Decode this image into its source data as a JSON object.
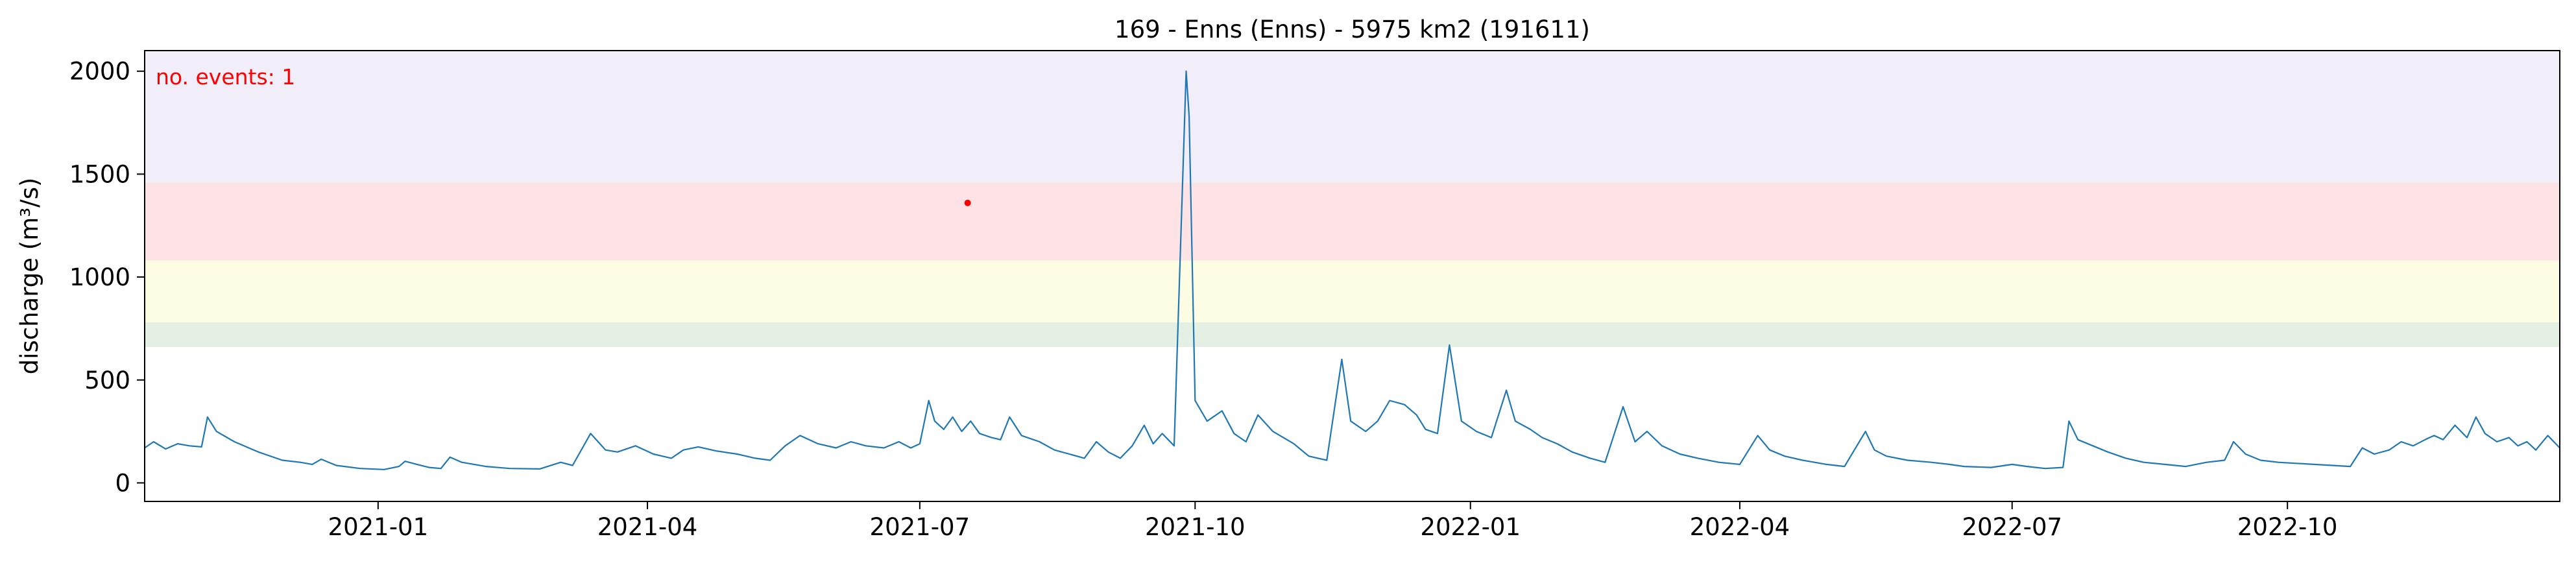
{
  "chart_data": {
    "type": "line",
    "title": "169 - Enns (Enns) - 5975 km2 (191611)",
    "xlabel": "",
    "ylabel": "discharge (m³/s)",
    "xlim": [
      "2020-10-15",
      "2022-12-31"
    ],
    "ylim": [
      -90,
      2100
    ],
    "grid": false,
    "yticks": [
      0,
      500,
      1000,
      1500,
      2000
    ],
    "xticks": [
      {
        "date": "2021-01-01",
        "label": "2021-01"
      },
      {
        "date": "2021-04-01",
        "label": "2021-04"
      },
      {
        "date": "2021-07-01",
        "label": "2021-07"
      },
      {
        "date": "2021-10-01",
        "label": "2021-10"
      },
      {
        "date": "2022-01-01",
        "label": "2022-01"
      },
      {
        "date": "2022-04-01",
        "label": "2022-04"
      },
      {
        "date": "2022-07-01",
        "label": "2022-07"
      },
      {
        "date": "2022-10-01",
        "label": "2022-10"
      }
    ],
    "threshold_bands": [
      {
        "from": 660,
        "to": 780,
        "color": "#e3f0e3"
      },
      {
        "from": 780,
        "to": 1080,
        "color": "#fdfde3"
      },
      {
        "from": 1080,
        "to": 1460,
        "color": "#fde3e6"
      },
      {
        "from": 1460,
        "to": 2100,
        "color": "#f1eef9"
      }
    ],
    "series": [
      {
        "color": "#1f77b4",
        "points": [
          [
            "2020-10-15",
            170
          ],
          [
            "2020-10-18",
            200
          ],
          [
            "2020-10-22",
            165
          ],
          [
            "2020-10-26",
            190
          ],
          [
            "2020-10-30",
            180
          ],
          [
            "2020-11-03",
            175
          ],
          [
            "2020-11-05",
            320
          ],
          [
            "2020-11-08",
            250
          ],
          [
            "2020-11-14",
            200
          ],
          [
            "2020-11-22",
            150
          ],
          [
            "2020-11-30",
            110
          ],
          [
            "2020-12-06",
            100
          ],
          [
            "2020-12-10",
            90
          ],
          [
            "2020-12-13",
            115
          ],
          [
            "2020-12-18",
            85
          ],
          [
            "2020-12-26",
            70
          ],
          [
            "2021-01-03",
            65
          ],
          [
            "2021-01-08",
            80
          ],
          [
            "2021-01-10",
            105
          ],
          [
            "2021-01-14",
            90
          ],
          [
            "2021-01-18",
            75
          ],
          [
            "2021-01-22",
            70
          ],
          [
            "2021-01-25",
            125
          ],
          [
            "2021-01-29",
            100
          ],
          [
            "2021-02-06",
            80
          ],
          [
            "2021-02-14",
            70
          ],
          [
            "2021-02-24",
            68
          ],
          [
            "2021-03-03",
            100
          ],
          [
            "2021-03-07",
            85
          ],
          [
            "2021-03-13",
            240
          ],
          [
            "2021-03-18",
            160
          ],
          [
            "2021-03-22",
            150
          ],
          [
            "2021-03-28",
            180
          ],
          [
            "2021-04-03",
            140
          ],
          [
            "2021-04-09",
            120
          ],
          [
            "2021-04-13",
            160
          ],
          [
            "2021-04-18",
            175
          ],
          [
            "2021-04-24",
            155
          ],
          [
            "2021-05-01",
            140
          ],
          [
            "2021-05-07",
            120
          ],
          [
            "2021-05-12",
            110
          ],
          [
            "2021-05-17",
            180
          ],
          [
            "2021-05-22",
            230
          ],
          [
            "2021-05-28",
            190
          ],
          [
            "2021-06-03",
            170
          ],
          [
            "2021-06-08",
            200
          ],
          [
            "2021-06-13",
            180
          ],
          [
            "2021-06-19",
            170
          ],
          [
            "2021-06-24",
            200
          ],
          [
            "2021-06-28",
            170
          ],
          [
            "2021-07-01",
            190
          ],
          [
            "2021-07-04",
            400
          ],
          [
            "2021-07-06",
            300
          ],
          [
            "2021-07-09",
            260
          ],
          [
            "2021-07-12",
            320
          ],
          [
            "2021-07-15",
            250
          ],
          [
            "2021-07-18",
            300
          ],
          [
            "2021-07-21",
            240
          ],
          [
            "2021-07-25",
            220
          ],
          [
            "2021-07-28",
            210
          ],
          [
            "2021-07-31",
            320
          ],
          [
            "2021-08-04",
            230
          ],
          [
            "2021-08-10",
            200
          ],
          [
            "2021-08-15",
            160
          ],
          [
            "2021-08-20",
            140
          ],
          [
            "2021-08-25",
            120
          ],
          [
            "2021-08-29",
            200
          ],
          [
            "2021-09-02",
            150
          ],
          [
            "2021-09-06",
            120
          ],
          [
            "2021-09-10",
            180
          ],
          [
            "2021-09-14",
            280
          ],
          [
            "2021-09-17",
            190
          ],
          [
            "2021-09-20",
            240
          ],
          [
            "2021-09-24",
            180
          ],
          [
            "2021-09-28",
            2000
          ],
          [
            "2021-09-29",
            1780
          ],
          [
            "2021-10-01",
            400
          ],
          [
            "2021-10-05",
            300
          ],
          [
            "2021-10-10",
            350
          ],
          [
            "2021-10-14",
            240
          ],
          [
            "2021-10-18",
            200
          ],
          [
            "2021-10-22",
            330
          ],
          [
            "2021-10-27",
            250
          ],
          [
            "2021-11-03",
            190
          ],
          [
            "2021-11-08",
            130
          ],
          [
            "2021-11-14",
            110
          ],
          [
            "2021-11-19",
            600
          ],
          [
            "2021-11-22",
            300
          ],
          [
            "2021-11-27",
            250
          ],
          [
            "2021-12-01",
            300
          ],
          [
            "2021-12-05",
            400
          ],
          [
            "2021-12-10",
            380
          ],
          [
            "2021-12-14",
            330
          ],
          [
            "2021-12-17",
            260
          ],
          [
            "2021-12-21",
            240
          ],
          [
            "2021-12-25",
            670
          ],
          [
            "2021-12-29",
            300
          ],
          [
            "2022-01-03",
            250
          ],
          [
            "2022-01-08",
            220
          ],
          [
            "2022-01-13",
            450
          ],
          [
            "2022-01-16",
            300
          ],
          [
            "2022-01-21",
            260
          ],
          [
            "2022-01-25",
            220
          ],
          [
            "2022-01-30",
            190
          ],
          [
            "2022-02-04",
            150
          ],
          [
            "2022-02-10",
            120
          ],
          [
            "2022-02-15",
            100
          ],
          [
            "2022-02-21",
            370
          ],
          [
            "2022-02-25",
            200
          ],
          [
            "2022-03-01",
            250
          ],
          [
            "2022-03-06",
            180
          ],
          [
            "2022-03-12",
            140
          ],
          [
            "2022-03-18",
            120
          ],
          [
            "2022-03-25",
            100
          ],
          [
            "2022-04-01",
            90
          ],
          [
            "2022-04-07",
            230
          ],
          [
            "2022-04-11",
            160
          ],
          [
            "2022-04-16",
            130
          ],
          [
            "2022-04-22",
            110
          ],
          [
            "2022-04-30",
            90
          ],
          [
            "2022-05-06",
            80
          ],
          [
            "2022-05-13",
            250
          ],
          [
            "2022-05-16",
            160
          ],
          [
            "2022-05-20",
            130
          ],
          [
            "2022-05-27",
            110
          ],
          [
            "2022-06-04",
            100
          ],
          [
            "2022-06-10",
            90
          ],
          [
            "2022-06-15",
            80
          ],
          [
            "2022-06-24",
            75
          ],
          [
            "2022-07-01",
            90
          ],
          [
            "2022-07-06",
            80
          ],
          [
            "2022-07-12",
            70
          ],
          [
            "2022-07-18",
            75
          ],
          [
            "2022-07-20",
            300
          ],
          [
            "2022-07-23",
            210
          ],
          [
            "2022-07-28",
            180
          ],
          [
            "2022-08-02",
            150
          ],
          [
            "2022-08-08",
            120
          ],
          [
            "2022-08-14",
            100
          ],
          [
            "2022-08-21",
            90
          ],
          [
            "2022-08-28",
            80
          ],
          [
            "2022-09-04",
            100
          ],
          [
            "2022-09-10",
            110
          ],
          [
            "2022-09-13",
            200
          ],
          [
            "2022-09-17",
            140
          ],
          [
            "2022-09-22",
            110
          ],
          [
            "2022-09-28",
            100
          ],
          [
            "2022-10-04",
            95
          ],
          [
            "2022-10-10",
            90
          ],
          [
            "2022-10-16",
            85
          ],
          [
            "2022-10-22",
            80
          ],
          [
            "2022-10-26",
            170
          ],
          [
            "2022-10-30",
            140
          ],
          [
            "2022-11-04",
            160
          ],
          [
            "2022-11-08",
            200
          ],
          [
            "2022-11-12",
            180
          ],
          [
            "2022-11-16",
            210
          ],
          [
            "2022-11-19",
            230
          ],
          [
            "2022-11-22",
            210
          ],
          [
            "2022-11-26",
            280
          ],
          [
            "2022-11-30",
            220
          ],
          [
            "2022-12-03",
            320
          ],
          [
            "2022-12-06",
            240
          ],
          [
            "2022-12-10",
            200
          ],
          [
            "2022-12-14",
            220
          ],
          [
            "2022-12-17",
            180
          ],
          [
            "2022-12-20",
            200
          ],
          [
            "2022-12-23",
            160
          ],
          [
            "2022-12-27",
            230
          ],
          [
            "2022-12-31",
            170
          ]
        ]
      }
    ],
    "events": [
      {
        "date": "2021-07-17",
        "value": 1360,
        "color": "#ff0000"
      }
    ],
    "annotation": {
      "text": "no. events: 1",
      "color": "#ff0000",
      "placement": "top-left"
    }
  }
}
